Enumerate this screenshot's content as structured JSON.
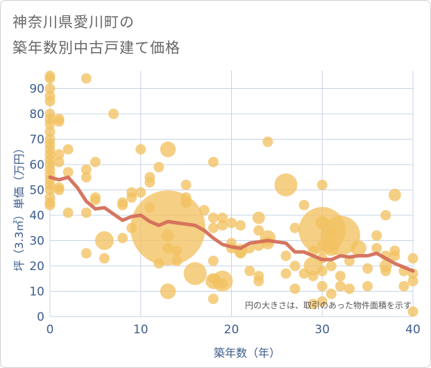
{
  "title_line1": "神奈川県愛川町の",
  "title_line2": "築年数別中古戸建て価格",
  "chart_data": {
    "type": "scatter",
    "xlabel": "築年数（年）",
    "ylabel": "坪（3.3㎡）単価（万円）",
    "xlim": [
      0,
      40
    ],
    "ylim": [
      0,
      97
    ],
    "xticks": [
      0,
      10,
      20,
      30,
      40
    ],
    "yticks": [
      0,
      10,
      20,
      30,
      40,
      50,
      60,
      70,
      80,
      90
    ],
    "grid": true,
    "note": "円の大きさは、取引のあった物件面積を示す",
    "colors": {
      "bubble": "#f2c161",
      "trend": "#d36f58",
      "grid": "#c6d4e6",
      "axis_text": "#3d5c8e"
    },
    "bubbles": [
      {
        "x": 0,
        "y": 95,
        "s": 1
      },
      {
        "x": 0,
        "y": 94,
        "s": 1
      },
      {
        "x": 0,
        "y": 90,
        "s": 1
      },
      {
        "x": 0,
        "y": 87,
        "s": 1
      },
      {
        "x": 0,
        "y": 85,
        "s": 1
      },
      {
        "x": 0,
        "y": 80,
        "s": 1
      },
      {
        "x": 0,
        "y": 78,
        "s": 1
      },
      {
        "x": 0,
        "y": 76,
        "s": 1
      },
      {
        "x": 0,
        "y": 73,
        "s": 1
      },
      {
        "x": 0,
        "y": 70,
        "s": 1
      },
      {
        "x": 0,
        "y": 68,
        "s": 1
      },
      {
        "x": 0,
        "y": 66,
        "s": 1
      },
      {
        "x": 0,
        "y": 64,
        "s": 1
      },
      {
        "x": 0,
        "y": 62,
        "s": 1
      },
      {
        "x": 0,
        "y": 60,
        "s": 1
      },
      {
        "x": 0,
        "y": 58,
        "s": 1
      },
      {
        "x": 0,
        "y": 56,
        "s": 1
      },
      {
        "x": 0,
        "y": 54,
        "s": 1
      },
      {
        "x": 0,
        "y": 52,
        "s": 1
      },
      {
        "x": 0,
        "y": 50,
        "s": 1
      },
      {
        "x": 0,
        "y": 47,
        "s": 1
      },
      {
        "x": 0,
        "y": 45,
        "s": 1
      },
      {
        "x": 0,
        "y": 44,
        "s": 1
      },
      {
        "x": 1,
        "y": 78,
        "s": 1
      },
      {
        "x": 1,
        "y": 77,
        "s": 1
      },
      {
        "x": 1,
        "y": 64,
        "s": 1
      },
      {
        "x": 1,
        "y": 61,
        "s": 1
      },
      {
        "x": 1,
        "y": 51,
        "s": 1
      },
      {
        "x": 1,
        "y": 50,
        "s": 1
      },
      {
        "x": 2,
        "y": 66,
        "s": 1
      },
      {
        "x": 2,
        "y": 57,
        "s": 1
      },
      {
        "x": 2,
        "y": 41,
        "s": 1
      },
      {
        "x": 4,
        "y": 94,
        "s": 1
      },
      {
        "x": 4,
        "y": 58,
        "s": 1
      },
      {
        "x": 4,
        "y": 55,
        "s": 1
      },
      {
        "x": 4,
        "y": 41,
        "s": 1
      },
      {
        "x": 4,
        "y": 25,
        "s": 1
      },
      {
        "x": 5,
        "y": 61,
        "s": 1
      },
      {
        "x": 5,
        "y": 47,
        "s": 1
      },
      {
        "x": 5,
        "y": 46,
        "s": 1
      },
      {
        "x": 6,
        "y": 30,
        "s": 1.8
      },
      {
        "x": 6,
        "y": 23,
        "s": 1
      },
      {
        "x": 7,
        "y": 80,
        "s": 1
      },
      {
        "x": 8,
        "y": 45,
        "s": 1
      },
      {
        "x": 8,
        "y": 44,
        "s": 1
      },
      {
        "x": 8,
        "y": 31,
        "s": 1
      },
      {
        "x": 9,
        "y": 49,
        "s": 1
      },
      {
        "x": 9,
        "y": 47,
        "s": 1
      },
      {
        "x": 9,
        "y": 35,
        "s": 1
      },
      {
        "x": 10,
        "y": 66,
        "s": 1
      },
      {
        "x": 10,
        "y": 49,
        "s": 1
      },
      {
        "x": 11,
        "y": 55,
        "s": 1
      },
      {
        "x": 11,
        "y": 53,
        "s": 1
      },
      {
        "x": 11,
        "y": 43,
        "s": 1
      },
      {
        "x": 12,
        "y": 59,
        "s": 1
      },
      {
        "x": 12,
        "y": 21,
        "s": 1
      },
      {
        "x": 13,
        "y": 66,
        "s": 1.5
      },
      {
        "x": 13,
        "y": 35,
        "s": 7.2
      },
      {
        "x": 13,
        "y": 32,
        "s": 1.2
      },
      {
        "x": 13,
        "y": 27,
        "s": 1
      },
      {
        "x": 13,
        "y": 10,
        "s": 1.5
      },
      {
        "x": 14,
        "y": 26,
        "s": 1
      },
      {
        "x": 14,
        "y": 22,
        "s": 1
      },
      {
        "x": 15,
        "y": 52,
        "s": 1
      },
      {
        "x": 15,
        "y": 47,
        "s": 1
      },
      {
        "x": 15,
        "y": 45,
        "s": 1
      },
      {
        "x": 16,
        "y": 17,
        "s": 2.2
      },
      {
        "x": 17,
        "y": 42,
        "s": 1
      },
      {
        "x": 18,
        "y": 61,
        "s": 1
      },
      {
        "x": 18,
        "y": 39,
        "s": 1
      },
      {
        "x": 18,
        "y": 35,
        "s": 1
      },
      {
        "x": 18,
        "y": 22,
        "s": 1
      },
      {
        "x": 18,
        "y": 15,
        "s": 1
      },
      {
        "x": 18,
        "y": 14,
        "s": 1.5
      },
      {
        "x": 18,
        "y": 7,
        "s": 1
      },
      {
        "x": 19,
        "y": 39,
        "s": 1
      },
      {
        "x": 19,
        "y": 36,
        "s": 1
      },
      {
        "x": 19,
        "y": 14,
        "s": 2
      },
      {
        "x": 19,
        "y": 13,
        "s": 1
      },
      {
        "x": 20,
        "y": 37,
        "s": 1
      },
      {
        "x": 20,
        "y": 29,
        "s": 1
      },
      {
        "x": 20,
        "y": 27,
        "s": 1
      },
      {
        "x": 21,
        "y": 36,
        "s": 1
      },
      {
        "x": 21,
        "y": 26,
        "s": 1.3
      },
      {
        "x": 21,
        "y": 25,
        "s": 1
      },
      {
        "x": 22,
        "y": 27,
        "s": 1
      },
      {
        "x": 22,
        "y": 18,
        "s": 1
      },
      {
        "x": 23,
        "y": 39,
        "s": 1.2
      },
      {
        "x": 23,
        "y": 34,
        "s": 1
      },
      {
        "x": 23,
        "y": 28,
        "s": 1
      },
      {
        "x": 23,
        "y": 16,
        "s": 1
      },
      {
        "x": 23,
        "y": 14,
        "s": 1
      },
      {
        "x": 24,
        "y": 69,
        "s": 1
      },
      {
        "x": 24,
        "y": 31,
        "s": 1.5
      },
      {
        "x": 24,
        "y": 29,
        "s": 1.2
      },
      {
        "x": 26,
        "y": 52,
        "s": 2.2
      },
      {
        "x": 26,
        "y": 24,
        "s": 1
      },
      {
        "x": 26,
        "y": 17,
        "s": 1
      },
      {
        "x": 27,
        "y": 35,
        "s": 1
      },
      {
        "x": 27,
        "y": 20,
        "s": 1
      },
      {
        "x": 27,
        "y": 11,
        "s": 1
      },
      {
        "x": 28,
        "y": 44,
        "s": 1
      },
      {
        "x": 28,
        "y": 17,
        "s": 1
      },
      {
        "x": 29,
        "y": 26,
        "s": 1
      },
      {
        "x": 29,
        "y": 20,
        "s": 1.8
      },
      {
        "x": 29,
        "y": 16,
        "s": 1
      },
      {
        "x": 29,
        "y": 5,
        "s": 1
      },
      {
        "x": 30,
        "y": 52,
        "s": 1
      },
      {
        "x": 30,
        "y": 37,
        "s": 1.3
      },
      {
        "x": 30,
        "y": 34,
        "s": 4.5
      },
      {
        "x": 30,
        "y": 28,
        "s": 1
      },
      {
        "x": 30,
        "y": 23,
        "s": 1
      },
      {
        "x": 30,
        "y": 18,
        "s": 1
      },
      {
        "x": 30,
        "y": 12,
        "s": 1
      },
      {
        "x": 30,
        "y": 6,
        "s": 1
      },
      {
        "x": 31,
        "y": 33,
        "s": 1
      },
      {
        "x": 31,
        "y": 27,
        "s": 1.5
      },
      {
        "x": 31,
        "y": 20,
        "s": 1
      },
      {
        "x": 31,
        "y": 9,
        "s": 1
      },
      {
        "x": 32,
        "y": 32,
        "s": 3.8
      },
      {
        "x": 32,
        "y": 16,
        "s": 1
      },
      {
        "x": 32,
        "y": 12,
        "s": 1
      },
      {
        "x": 33,
        "y": 22,
        "s": 1
      },
      {
        "x": 33,
        "y": 11,
        "s": 1
      },
      {
        "x": 34,
        "y": 27,
        "s": 1.5
      },
      {
        "x": 35,
        "y": 19,
        "s": 1
      },
      {
        "x": 35,
        "y": 12,
        "s": 1
      },
      {
        "x": 36,
        "y": 32,
        "s": 1
      },
      {
        "x": 36,
        "y": 27,
        "s": 1
      },
      {
        "x": 37,
        "y": 40,
        "s": 1
      },
      {
        "x": 37,
        "y": 24,
        "s": 1
      },
      {
        "x": 37,
        "y": 20,
        "s": 1.2
      },
      {
        "x": 37,
        "y": 18,
        "s": 1
      },
      {
        "x": 38,
        "y": 48,
        "s": 1.2
      },
      {
        "x": 38,
        "y": 26,
        "s": 1
      },
      {
        "x": 38,
        "y": 24,
        "s": 1
      },
      {
        "x": 39,
        "y": 18,
        "s": 1
      },
      {
        "x": 39,
        "y": 12,
        "s": 1
      },
      {
        "x": 40,
        "y": 23,
        "s": 1
      },
      {
        "x": 40,
        "y": 17,
        "s": 1
      },
      {
        "x": 40,
        "y": 14,
        "s": 1
      },
      {
        "x": 40,
        "y": 2,
        "s": 1
      }
    ],
    "trend": {
      "x": [
        0,
        1,
        2,
        3,
        4,
        5,
        6,
        7,
        8,
        9,
        10,
        11,
        12,
        13,
        14,
        15,
        16,
        17,
        18,
        19,
        20,
        21,
        22,
        23,
        24,
        25,
        26,
        27,
        28,
        29,
        30,
        31,
        32,
        33,
        34,
        35,
        36,
        37,
        38,
        39,
        40
      ],
      "y": [
        55,
        54,
        55,
        51,
        45.5,
        42.5,
        43,
        40.5,
        38,
        39.5,
        40,
        37.5,
        36,
        37.5,
        37,
        36.5,
        36,
        34,
        31,
        28.5,
        27.5,
        27,
        29,
        29.5,
        30,
        29.5,
        29,
        25.5,
        25.5,
        24,
        22.5,
        22.5,
        24,
        23.5,
        24,
        24,
        25,
        23,
        21,
        19.5,
        18
      ]
    }
  }
}
